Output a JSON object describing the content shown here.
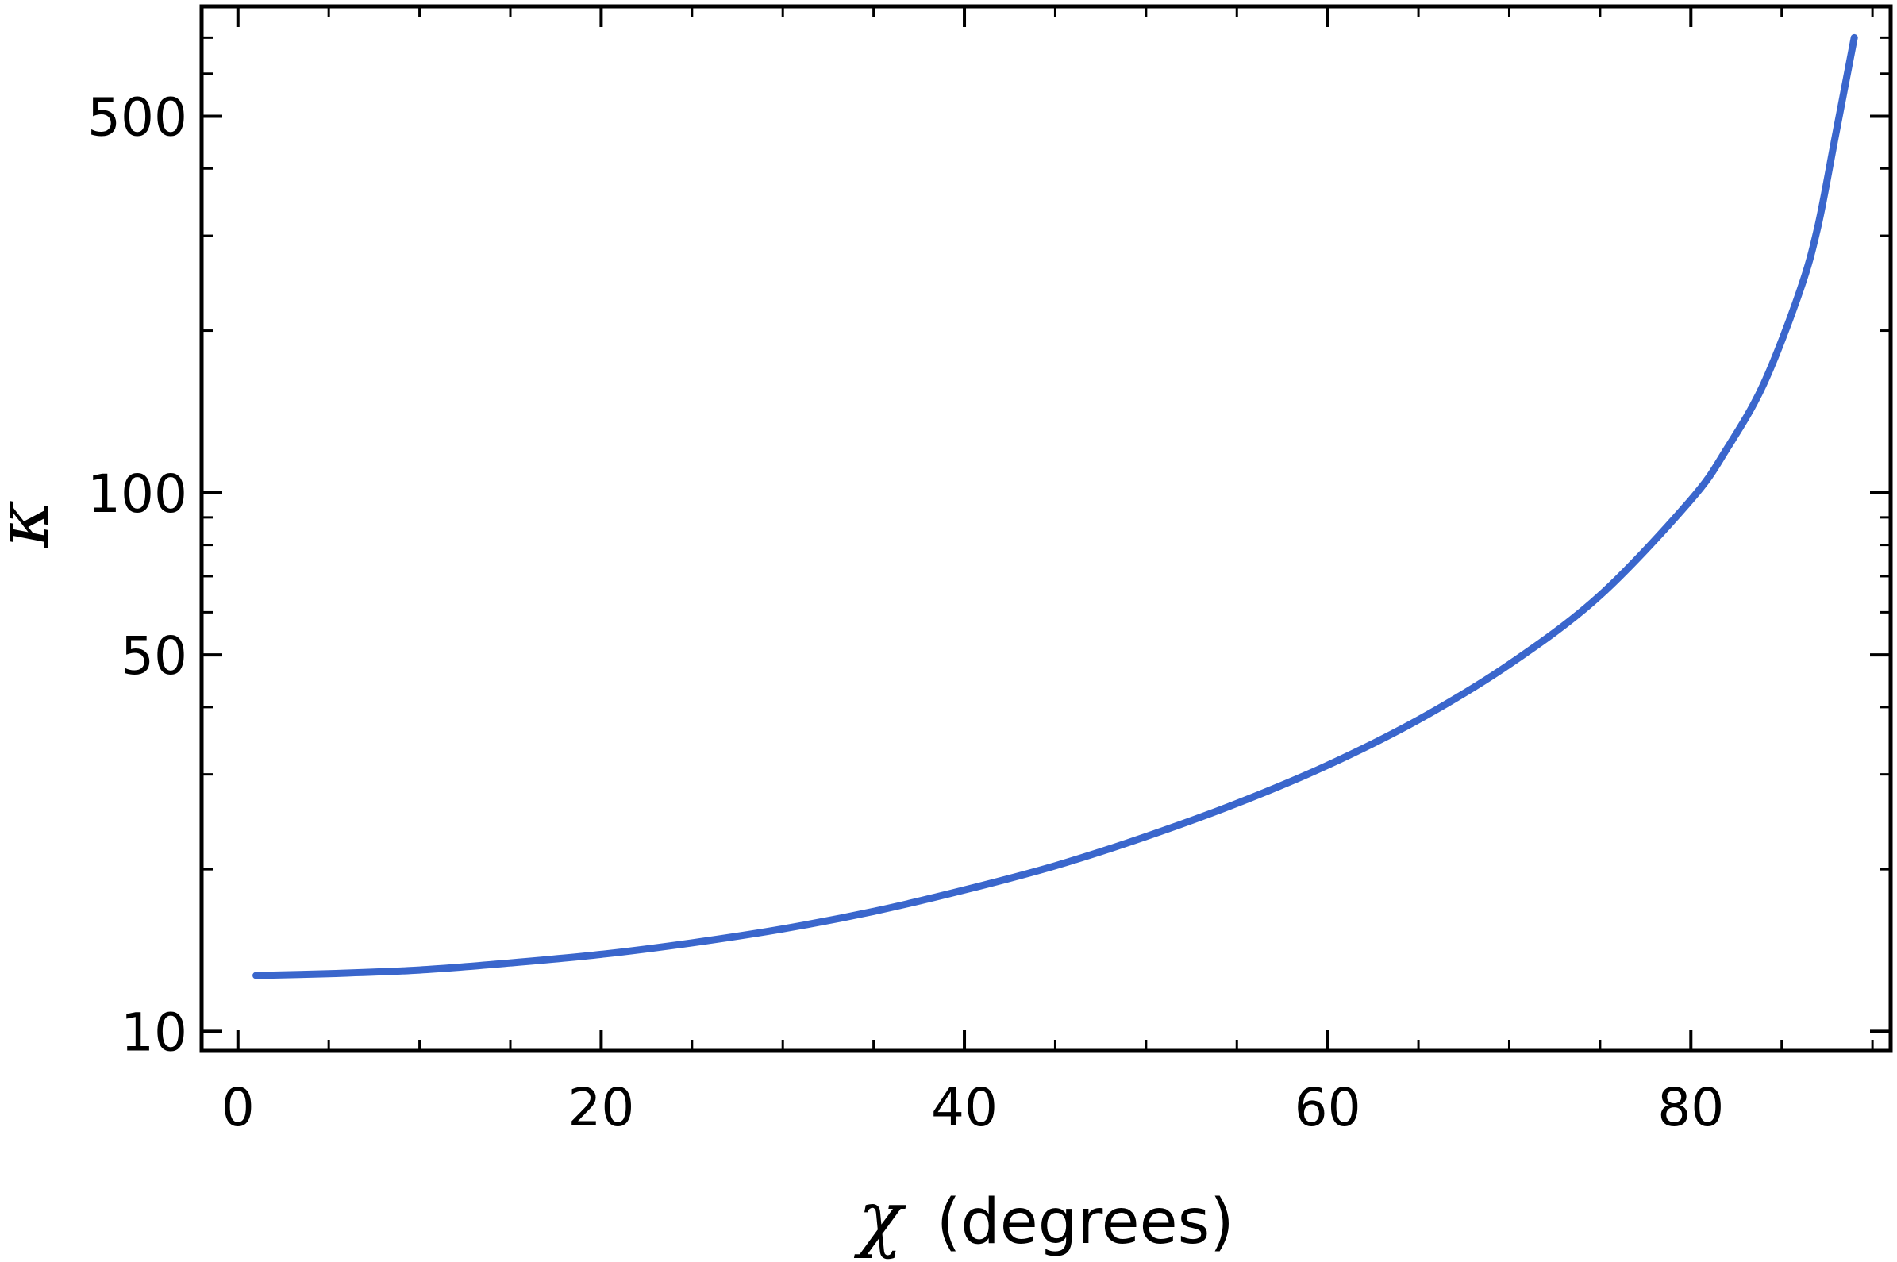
{
  "chart_data": {
    "type": "line",
    "title": "",
    "xlabel_symbol": "χ",
    "xlabel_text": "(degrees)",
    "ylabel_symbol": "κ",
    "xlim": [
      -2,
      91
    ],
    "ylim": [
      9.2,
      800
    ],
    "yscale": "log",
    "grid": false,
    "legend": "none",
    "line_color": "#3a66cc",
    "x_major_ticks": [
      0,
      20,
      40,
      60,
      80
    ],
    "x_minor_ticks": [
      5,
      10,
      15,
      25,
      30,
      35,
      45,
      50,
      55,
      65,
      70,
      75,
      85,
      90
    ],
    "y_labeled_ticks": [
      10,
      50,
      100,
      500
    ],
    "y_minor_ticks": [
      20,
      30,
      40,
      60,
      70,
      80,
      90,
      200,
      300,
      400,
      600,
      700
    ],
    "series": [
      {
        "x": [
          1,
          5,
          10,
          15,
          20,
          25,
          30,
          35,
          40,
          45,
          50,
          55,
          60,
          65,
          70,
          75,
          80,
          82,
          84,
          86,
          87,
          88,
          89
        ],
        "y": [
          12.7,
          12.8,
          13.0,
          13.4,
          13.9,
          14.6,
          15.5,
          16.7,
          18.3,
          20.3,
          23.0,
          26.5,
          31.2,
          37.9,
          48.0,
          64.5,
          97.0,
          121,
          159,
          237,
          313,
          468,
          700
        ]
      }
    ]
  }
}
